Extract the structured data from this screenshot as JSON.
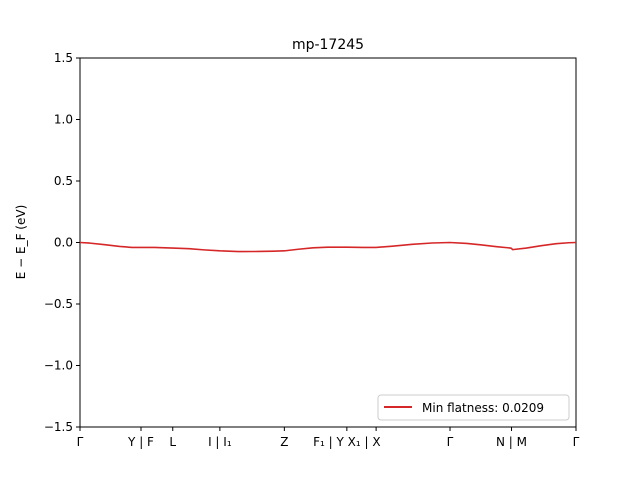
{
  "chart_data": {
    "type": "line",
    "title": "mp-17245",
    "xlabel": "",
    "ylabel": "E − E_F (eV)",
    "ylim": [
      -1.5,
      1.5
    ],
    "xlim": [
      0,
      1
    ],
    "yticks": [
      -1.5,
      -1.0,
      -0.5,
      0.0,
      0.5,
      1.0,
      1.5
    ],
    "ytick_labels": [
      "−1.5",
      "−1.0",
      "−0.5",
      "0.0",
      "0.5",
      "1.0",
      "1.5"
    ],
    "xticks": [
      {
        "position": 0.0,
        "label": "Γ"
      },
      {
        "position": 0.123,
        "label": "Y | F"
      },
      {
        "position": 0.187,
        "label": "L"
      },
      {
        "position": 0.282,
        "label": "I | I₁"
      },
      {
        "position": 0.412,
        "label": "Z"
      },
      {
        "position": 0.538,
        "label": "F₁ | Y X₁ | X"
      },
      {
        "position": 0.597,
        "label": ""
      },
      {
        "position": 0.746,
        "label": "Γ"
      },
      {
        "position": 0.87,
        "label": "N | M"
      },
      {
        "position": 1.0,
        "label": "Γ"
      }
    ],
    "grid": false,
    "legend_position": "lower right",
    "series": [
      {
        "name": "Min flatness: 0.0209",
        "color": "#d62728",
        "x": [
          0.0,
          0.02,
          0.05,
          0.08,
          0.105,
          0.123,
          0.15,
          0.187,
          0.22,
          0.25,
          0.282,
          0.32,
          0.36,
          0.39,
          0.412,
          0.44,
          0.47,
          0.5,
          0.538,
          0.57,
          0.597,
          0.63,
          0.67,
          0.71,
          0.746,
          0.78,
          0.81,
          0.84,
          0.868,
          0.87,
          0.872,
          0.9,
          0.93,
          0.96,
          0.985,
          1.0
        ],
        "y": [
          0.0,
          -0.005,
          -0.018,
          -0.032,
          -0.04,
          -0.04,
          -0.04,
          -0.045,
          -0.05,
          -0.06,
          -0.068,
          -0.074,
          -0.073,
          -0.071,
          -0.068,
          -0.055,
          -0.043,
          -0.038,
          -0.038,
          -0.04,
          -0.04,
          -0.03,
          -0.015,
          -0.004,
          0.0,
          -0.008,
          -0.02,
          -0.034,
          -0.045,
          -0.048,
          -0.058,
          -0.045,
          -0.026,
          -0.01,
          -0.002,
          0.0
        ]
      }
    ]
  }
}
